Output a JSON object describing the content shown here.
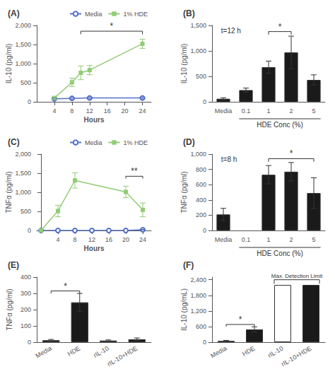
{
  "chart_data": [
    {
      "type": "line",
      "title": "(A)",
      "xlabel": "Hours",
      "ylabel": "IL-10 (pg/ml)",
      "xlim": [
        0,
        26
      ],
      "xticks": [
        4,
        8,
        12,
        16,
        20,
        24
      ],
      "ylim": [
        0,
        2000
      ],
      "yticks": [
        0,
        500,
        1000,
        1500,
        2000
      ],
      "grid": false,
      "legend": "top",
      "series": [
        {
          "name": "Media",
          "marker": "open circle",
          "x": [
            4,
            8,
            12,
            24
          ],
          "values": [
            80,
            90,
            100,
            100
          ],
          "errors": [
            20,
            20,
            20,
            20
          ]
        },
        {
          "name": "1% HDE",
          "marker": "square",
          "x": [
            4,
            8,
            10,
            12,
            24
          ],
          "values": [
            100,
            510,
            760,
            830,
            1520
          ],
          "errors": [
            30,
            110,
            180,
            120,
            120
          ]
        }
      ],
      "annotations": [
        {
          "type": "significance",
          "x1": 10,
          "x2": 24,
          "y": 1850,
          "drop": 80,
          "text": "*"
        }
      ]
    },
    {
      "type": "bar",
      "title": "(B)",
      "ylabel": "IL-10 (pg/ml)",
      "categories": [
        "Media",
        "0.1",
        "1",
        "2",
        "5"
      ],
      "values": [
        60,
        230,
        680,
        970,
        430
      ],
      "errors": [
        20,
        40,
        120,
        320,
        100
      ],
      "color": "#1a1a1a",
      "ylim": [
        0,
        1500
      ],
      "yticks": [
        0,
        500,
        1000,
        1500
      ],
      "grid": false,
      "annotations": [
        {
          "type": "text",
          "text": "t=12 h"
        },
        {
          "type": "group_label",
          "text": "HDE Conc (%)",
          "from": "0.1",
          "to": "5"
        },
        {
          "type": "significance",
          "from": "1",
          "to": "2",
          "y": 1380,
          "drop": 60,
          "text": "*"
        }
      ]
    },
    {
      "type": "line",
      "title": "(C)",
      "xlabel": "Hours",
      "ylabel": "TNFα (pg/ml)",
      "xlim": [
        -1,
        26
      ],
      "xticks": [
        4,
        8,
        12,
        16,
        20,
        24
      ],
      "ylim": [
        0,
        2000
      ],
      "yticks": [
        0,
        500,
        1000,
        1500,
        2000
      ],
      "grid": false,
      "legend": "top",
      "series": [
        {
          "name": "Media",
          "marker": "open circle",
          "x": [
            0,
            4,
            8,
            12,
            16,
            20,
            24
          ],
          "values": [
            0,
            0,
            0,
            0,
            0,
            0,
            20
          ],
          "errors": [
            0,
            0,
            0,
            0,
            0,
            0,
            10
          ]
        },
        {
          "name": "1% HDE",
          "marker": "square",
          "x": [
            0,
            4,
            8,
            20,
            24
          ],
          "values": [
            0,
            510,
            1310,
            1010,
            540
          ],
          "errors": [
            0,
            150,
            200,
            150,
            180
          ]
        }
      ],
      "annotations": [
        {
          "type": "significance",
          "x1": 20,
          "x2": 24,
          "y": 1420,
          "drop": 60,
          "text": "**"
        }
      ]
    },
    {
      "type": "bar",
      "title": "(D)",
      "ylabel": "TNFα (pg/ml)",
      "categories": [
        "Media",
        "0.1",
        "1",
        "2",
        "5"
      ],
      "values": [
        210,
        null,
        730,
        770,
        490
      ],
      "errors": [
        80,
        null,
        120,
        120,
        200
      ],
      "color": "#1a1a1a",
      "ylim": [
        0,
        1000
      ],
      "yticks": [
        0,
        200,
        400,
        600,
        800,
        1000
      ],
      "grid": false,
      "annotations": [
        {
          "type": "text",
          "text": "t=8 h"
        },
        {
          "type": "group_label",
          "text": "HDE Conc (%)",
          "from": "0.1",
          "to": "5"
        },
        {
          "type": "significance",
          "from": "1",
          "to": "5",
          "y": 940,
          "drop": 40,
          "text": "*"
        }
      ]
    },
    {
      "type": "bar",
      "title": "(E)",
      "ylabel": "TNFα (pg/ml)",
      "categories": [
        "Media",
        "HDE",
        "rIL-10",
        "rIL-10+HDE"
      ],
      "values": [
        12,
        245,
        10,
        18
      ],
      "errors": [
        5,
        55,
        4,
        8
      ],
      "color": "#1a1a1a",
      "ylim": [
        0,
        400
      ],
      "yticks": [
        0,
        100,
        200,
        300,
        400
      ],
      "grid": false,
      "annotations": [
        {
          "type": "significance",
          "from": "Media",
          "to": "HDE",
          "y": 315,
          "drop": 15,
          "text": "*"
        }
      ]
    },
    {
      "type": "bar",
      "title": "(F)",
      "ylabel": "IL-10 (pg/mL)",
      "categories": [
        "Media",
        "HDE",
        "rIL-10",
        "rIL-10+HDE"
      ],
      "values": [
        50,
        490,
        2200,
        2200
      ],
      "errors": [
        20,
        100,
        0,
        0
      ],
      "colors": [
        "#1a1a1a",
        "#1a1a1a",
        "#ffffff",
        "#1a1a1a"
      ],
      "ylim": [
        0,
        2500
      ],
      "yticks": [
        0,
        600,
        1200,
        1800,
        2400
      ],
      "grid": false,
      "annotations": [
        {
          "type": "significance",
          "from": "Media",
          "to": "HDE",
          "y": 680,
          "drop": 80,
          "text": "*"
        },
        {
          "type": "limit",
          "from": "rIL-10",
          "to": "rIL-10+HDE",
          "y": 2400,
          "drop": 150,
          "text": "Max. Detection Limit"
        }
      ]
    }
  ]
}
